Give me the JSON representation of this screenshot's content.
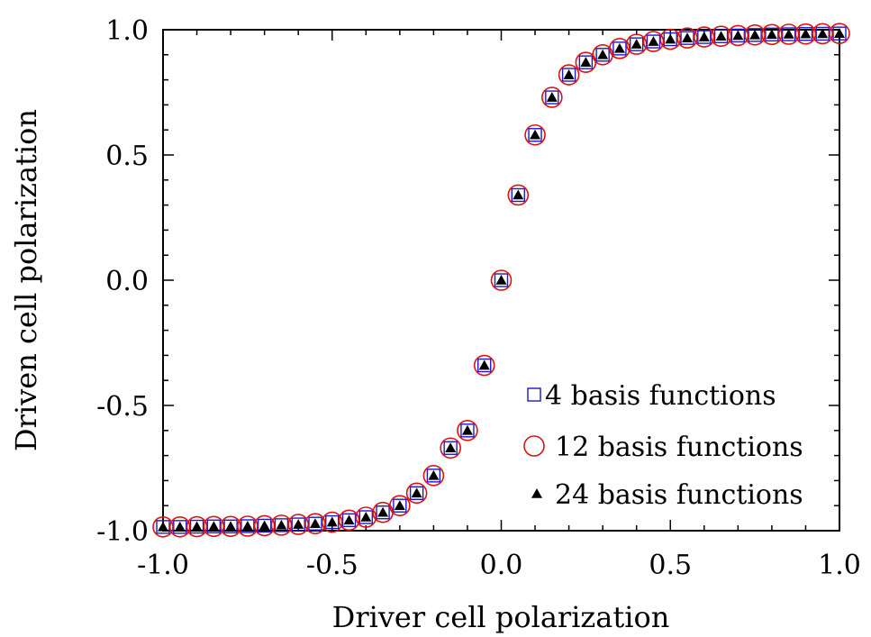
{
  "chart_data": {
    "type": "scatter",
    "xlabel": "Driver cell polarization",
    "ylabel": "Driven cell polarization",
    "xlim": [
      -1.0,
      1.0
    ],
    "ylim": [
      -1.0,
      1.0
    ],
    "xticks": [
      "-1.0",
      "-0.5",
      "0.0",
      "0.5",
      "1.0"
    ],
    "yticks": [
      "-1.0",
      "-0.5",
      "0.0",
      "0.5",
      "1.0"
    ],
    "grid": false,
    "legend_position": "bottom-right",
    "x": [
      -1.0,
      -0.95,
      -0.9,
      -0.85,
      -0.8,
      -0.75,
      -0.7,
      -0.65,
      -0.6,
      -0.55,
      -0.5,
      -0.45,
      -0.4,
      -0.35,
      -0.3,
      -0.25,
      -0.2,
      -0.15,
      -0.1,
      -0.05,
      0.0,
      0.05,
      0.1,
      0.15,
      0.2,
      0.25,
      0.3,
      0.35,
      0.4,
      0.45,
      0.5,
      0.55,
      0.6,
      0.65,
      0.7,
      0.75,
      0.8,
      0.85,
      0.9,
      0.95,
      1.0
    ],
    "series": [
      {
        "name": "4 basis functions",
        "marker": "square",
        "color": "#1a1acc",
        "values": [
          -0.985,
          -0.985,
          -0.984,
          -0.983,
          -0.983,
          -0.982,
          -0.98,
          -0.978,
          -0.975,
          -0.972,
          -0.966,
          -0.958,
          -0.946,
          -0.927,
          -0.9,
          -0.85,
          -0.78,
          -0.67,
          -0.6,
          -0.34,
          0.0,
          0.34,
          0.58,
          0.73,
          0.82,
          0.87,
          0.9,
          0.925,
          0.942,
          0.953,
          0.962,
          0.967,
          0.971,
          0.974,
          0.977,
          0.979,
          0.981,
          0.982,
          0.983,
          0.984,
          0.985
        ]
      },
      {
        "name": "12 basis functions",
        "marker": "circle",
        "color": "#dd1111",
        "values": [
          -0.985,
          -0.985,
          -0.984,
          -0.983,
          -0.983,
          -0.982,
          -0.98,
          -0.978,
          -0.975,
          -0.972,
          -0.966,
          -0.958,
          -0.946,
          -0.927,
          -0.9,
          -0.85,
          -0.78,
          -0.67,
          -0.6,
          -0.34,
          0.0,
          0.34,
          0.58,
          0.73,
          0.82,
          0.87,
          0.9,
          0.925,
          0.942,
          0.953,
          0.962,
          0.967,
          0.971,
          0.974,
          0.977,
          0.979,
          0.981,
          0.982,
          0.983,
          0.984,
          0.985
        ]
      },
      {
        "name": "24 basis functions",
        "marker": "triangle",
        "color": "#000000",
        "values": [
          -0.985,
          -0.985,
          -0.984,
          -0.983,
          -0.983,
          -0.982,
          -0.98,
          -0.978,
          -0.975,
          -0.972,
          -0.966,
          -0.958,
          -0.946,
          -0.927,
          -0.9,
          -0.85,
          -0.78,
          -0.67,
          -0.6,
          -0.34,
          0.0,
          0.34,
          0.58,
          0.73,
          0.82,
          0.87,
          0.9,
          0.925,
          0.942,
          0.953,
          0.962,
          0.967,
          0.971,
          0.974,
          0.977,
          0.979,
          0.981,
          0.982,
          0.983,
          0.984,
          0.985
        ]
      }
    ]
  }
}
